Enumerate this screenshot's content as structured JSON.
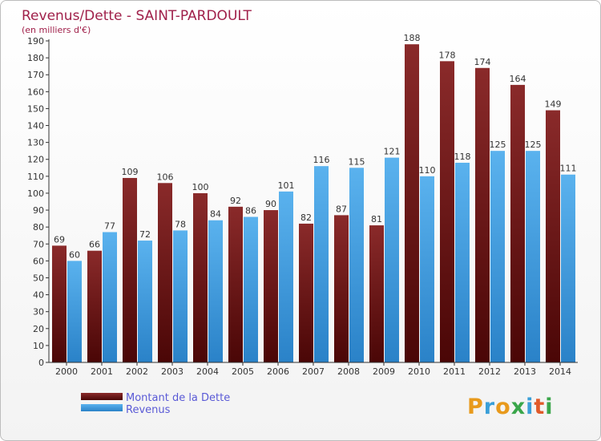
{
  "chart_data": {
    "type": "bar",
    "title": "Revenus/Dette - SAINT-PARDOULT",
    "subtitle": "(en milliers d'€)",
    "categories": [
      "2000",
      "2001",
      "2002",
      "2003",
      "2004",
      "2005",
      "2006",
      "2007",
      "2008",
      "2009",
      "2010",
      "2011",
      "2012",
      "2013",
      "2014"
    ],
    "series": [
      {
        "name": "Montant de la Dette",
        "values": [
          69,
          66,
          109,
          106,
          100,
          92,
          90,
          82,
          87,
          81,
          188,
          178,
          174,
          164,
          149
        ],
        "color": "#7a1c1c"
      },
      {
        "name": "Revenus",
        "values": [
          60,
          77,
          72,
          78,
          84,
          86,
          101,
          116,
          115,
          121,
          110,
          118,
          125,
          125,
          111
        ],
        "color": "#3d9be0"
      }
    ],
    "ylim": [
      0,
      190
    ],
    "ytick_step": 10,
    "grid": false,
    "legend": "bottom-left",
    "colors": {
      "title": "#a0204a",
      "legend_text": "#5a5ad6",
      "axis": "#333333"
    }
  },
  "logo": {
    "text": "Proxiti"
  }
}
